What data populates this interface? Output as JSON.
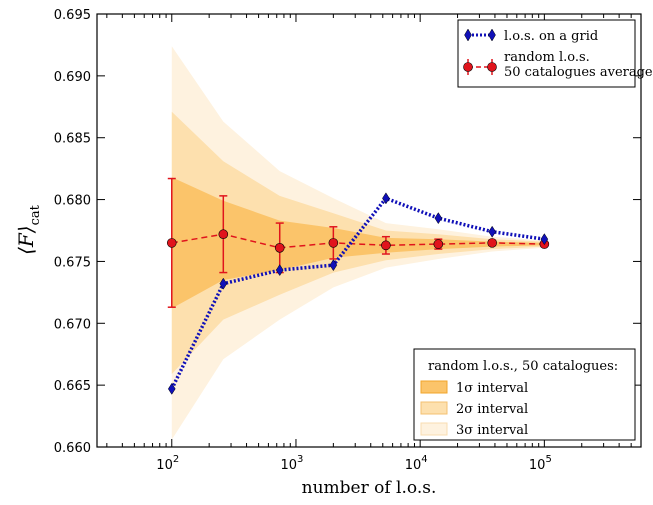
{
  "chart_data": {
    "type": "line",
    "xscale": "log",
    "xlim": [
      25,
      600000
    ],
    "ylim": [
      0.66,
      0.695
    ],
    "xlabel": "number of l.o.s.",
    "ylabel_main": "⟨F⟩",
    "ylabel_sub": "cat",
    "x_ticks": [
      {
        "value": 100,
        "base": "10",
        "exp": "2"
      },
      {
        "value": 1000,
        "base": "10",
        "exp": "3"
      },
      {
        "value": 10000,
        "base": "10",
        "exp": "4"
      },
      {
        "value": 100000,
        "base": "10",
        "exp": "5"
      }
    ],
    "y_ticks": [
      {
        "value": 0.66,
        "label": "0.660"
      },
      {
        "value": 0.665,
        "label": "0.665"
      },
      {
        "value": 0.67,
        "label": "0.670"
      },
      {
        "value": 0.675,
        "label": "0.675"
      },
      {
        "value": 0.68,
        "label": "0.680"
      },
      {
        "value": 0.685,
        "label": "0.685"
      },
      {
        "value": 0.69,
        "label": "0.690"
      },
      {
        "value": 0.695,
        "label": "0.695"
      }
    ],
    "x": [
      100,
      260,
      740,
      2000,
      5300,
      14000,
      38000,
      100000
    ],
    "grid_series": {
      "name": "l.o.s. on a grid",
      "color": "#1010b8",
      "values": [
        0.6647,
        0.6732,
        0.6743,
        0.6747,
        0.6801,
        0.6785,
        0.6774,
        0.6768
      ]
    },
    "random_series": {
      "name_line1": "random l.o.s.",
      "name_line2": "50 catalogues average",
      "color": "#e0141c",
      "values": [
        0.6765,
        0.6772,
        0.6761,
        0.6765,
        0.6763,
        0.6764,
        0.6765,
        0.6764
      ],
      "errors": [
        0.0052,
        0.0031,
        0.002,
        0.0013,
        0.0007,
        0.0004,
        0.0002,
        0.0001
      ]
    },
    "bands": [
      {
        "name": "1σ interval",
        "sigma": 1,
        "color": "#fbc46a",
        "edge": "#f2a52a"
      },
      {
        "name": "2σ interval",
        "sigma": 2,
        "color": "#fde0ae",
        "edge": "#f4c070"
      },
      {
        "name": "3σ interval",
        "sigma": 3,
        "color": "#fef2df",
        "edge": "#f8dcb0"
      }
    ],
    "band_center": [
      0.6765,
      0.6767,
      0.6763,
      0.6765,
      0.6763,
      0.6764,
      0.6764,
      0.6764
    ],
    "band_sigma": [
      0.0053,
      0.0032,
      0.002,
      0.0012,
      0.0006,
      0.0004,
      0.0002,
      0.0001
    ],
    "legend_top": {
      "placement": "top-right"
    },
    "legend_bottom": {
      "placement": "bottom-right",
      "title": "random l.o.s., 50 catalogues:"
    }
  }
}
